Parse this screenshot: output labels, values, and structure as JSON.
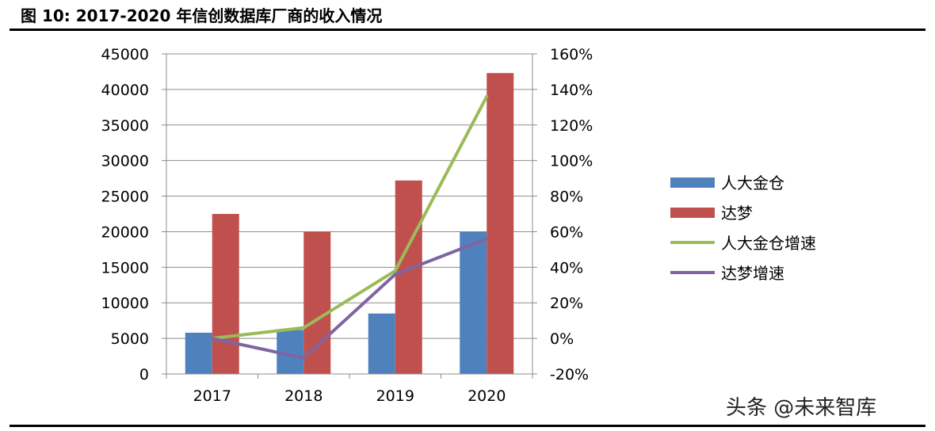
{
  "figure_title": "图 10:  2017-2020 年信创数据库厂商的收入情况",
  "watermark": "头条 @未来智库",
  "chart_data": {
    "type": "bar",
    "categories": [
      "2017",
      "2018",
      "2019",
      "2020"
    ],
    "series": [
      {
        "name": "人大金仓",
        "kind": "bar",
        "axis": "left",
        "color": "#4f81bd",
        "values": [
          5800,
          6200,
          8500,
          20000
        ]
      },
      {
        "name": "达梦",
        "kind": "bar",
        "axis": "left",
        "color": "#c0504d",
        "values": [
          22500,
          20000,
          27200,
          42300
        ]
      },
      {
        "name": "人大金仓增速",
        "kind": "line",
        "axis": "right",
        "color": "#9bbb59",
        "values": [
          0,
          6,
          38,
          136
        ]
      },
      {
        "name": "达梦增速",
        "kind": "line",
        "axis": "right",
        "color": "#8064a2",
        "values": [
          0,
          -11,
          36,
          56
        ]
      }
    ],
    "left_axis": {
      "ylim": [
        0,
        45000
      ],
      "ticks": [
        "0",
        "5000",
        "10000",
        "15000",
        "20000",
        "25000",
        "30000",
        "35000",
        "40000",
        "45000"
      ]
    },
    "right_axis": {
      "ylim": [
        -20,
        160
      ],
      "ticks": [
        "-20%",
        "0%",
        "20%",
        "40%",
        "60%",
        "80%",
        "100%",
        "120%",
        "140%",
        "160%"
      ]
    },
    "grid": true,
    "legend": "right"
  }
}
